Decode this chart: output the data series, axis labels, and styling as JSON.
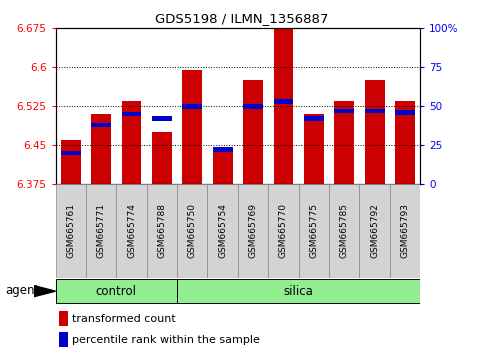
{
  "title": "GDS5198 / ILMN_1356887",
  "samples": [
    "GSM665761",
    "GSM665771",
    "GSM665774",
    "GSM665788",
    "GSM665750",
    "GSM665754",
    "GSM665769",
    "GSM665770",
    "GSM665775",
    "GSM665785",
    "GSM665792",
    "GSM665793"
  ],
  "groups": [
    "control",
    "control",
    "control",
    "control",
    "silica",
    "silica",
    "silica",
    "silica",
    "silica",
    "silica",
    "silica",
    "silica"
  ],
  "transformed_count": [
    6.46,
    6.51,
    6.535,
    6.475,
    6.595,
    6.445,
    6.575,
    6.685,
    6.51,
    6.535,
    6.575,
    6.535
  ],
  "percentile_rank": [
    20,
    38,
    45,
    42,
    50,
    22,
    50,
    53,
    42,
    47,
    47,
    46
  ],
  "y_min": 6.375,
  "y_max": 6.675,
  "y_ticks": [
    6.375,
    6.45,
    6.525,
    6.6,
    6.675
  ],
  "y_tick_labels": [
    "6.375",
    "6.45",
    "6.525",
    "6.6",
    "6.675"
  ],
  "y2_ticks": [
    0,
    25,
    50,
    75,
    100
  ],
  "y2_tick_labels": [
    "0",
    "25",
    "50",
    "75",
    "100%"
  ],
  "bar_color": "#cc0000",
  "percentile_color": "#0000cc",
  "group_color": "#90ee90",
  "bar_width": 0.65,
  "n_control": 4,
  "n_silica": 8,
  "agent_label": "agent",
  "legend_items": [
    "transformed count",
    "percentile rank within the sample"
  ]
}
